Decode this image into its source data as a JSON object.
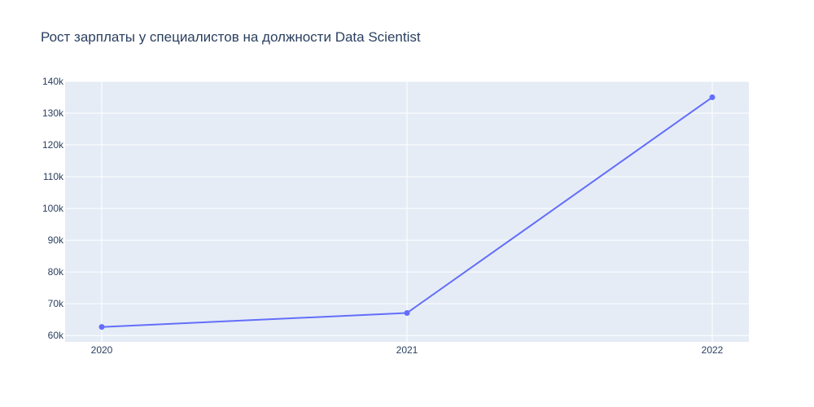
{
  "chart_data": {
    "type": "line",
    "title": "Рост зарплаты у специалистов на должности Data Scientist",
    "xlabel": "",
    "ylabel": "",
    "x": [
      2020,
      2021,
      2022
    ],
    "x_tick_labels": [
      "2020",
      "2021",
      "2022"
    ],
    "series": [
      {
        "values": [
          62700,
          67100,
          135000
        ]
      }
    ],
    "y_ticks": [
      60000,
      70000,
      80000,
      90000,
      100000,
      110000,
      120000,
      130000,
      140000
    ],
    "y_tick_labels": [
      "60k",
      "70k",
      "80k",
      "90k",
      "100k",
      "110k",
      "120k",
      "130k",
      "140k"
    ],
    "xlim": [
      2019.88,
      2022.12
    ],
    "ylim": [
      58000,
      140000
    ],
    "grid": true,
    "legend": "none",
    "colors": {
      "plot_background": "#e5ecf6",
      "grid": "#ffffff",
      "line": "#636efa",
      "text": "#2a3f5f"
    }
  }
}
